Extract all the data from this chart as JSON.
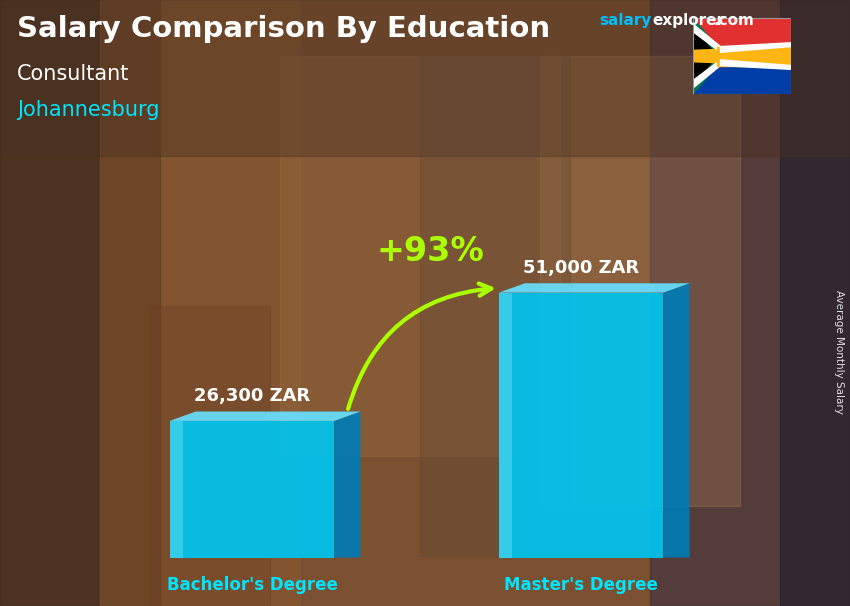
{
  "title": "Salary Comparison By Education",
  "subtitle_job": "Consultant",
  "subtitle_city": "Johannesburg",
  "site_salary": "salary",
  "site_explorer": "explorer",
  "site_com": ".com",
  "ylabel_rotated": "Average Monthly Salary",
  "categories": [
    "Bachelor's Degree",
    "Master's Degree"
  ],
  "values": [
    26300,
    51000
  ],
  "labels": [
    "26,300 ZAR",
    "51,000 ZAR"
  ],
  "pct_change": "+93%",
  "bar_face_color": "#00C5F0",
  "bar_top_color": "#66E0FF",
  "bar_side_color": "#007BB5",
  "bar_alpha": 0.92,
  "title_color": "#FFFFFF",
  "subtitle_job_color": "#FFFFFF",
  "subtitle_city_color": "#00E5FF",
  "label_color": "#FFFFFF",
  "category_color": "#00E5FF",
  "pct_color": "#AAFF00",
  "arrow_color": "#AAFF00",
  "site_color_salary": "#00BFFF",
  "site_color_explorer": "#FFFFFF",
  "site_color_com": "#FFFFFF",
  "figsize": [
    8.5,
    6.06
  ],
  "dpi": 100,
  "bg_left_color": "#5A3520",
  "bg_mid_color": "#7A5535",
  "bg_right_color": "#4A3828"
}
